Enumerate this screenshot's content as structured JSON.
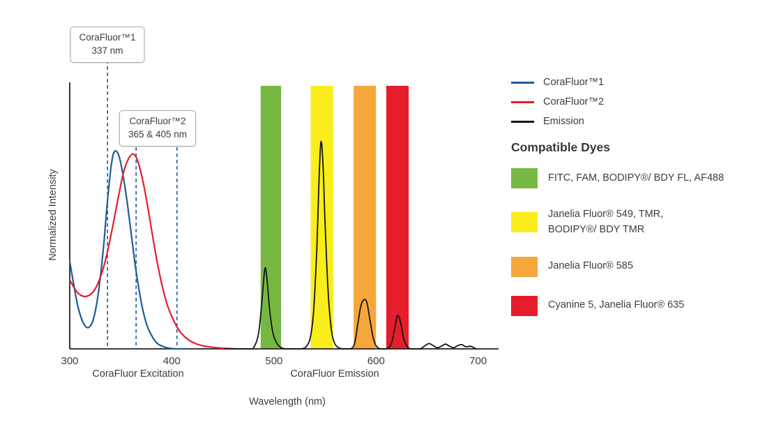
{
  "palette": {
    "blue": "#1e5c97",
    "red": "#e51d2c",
    "emission": "#141414",
    "text": "#3d3d3d",
    "axis": "#231f20",
    "callout_border": "#a8a8a8"
  },
  "callouts": [
    {
      "line1": "CoraFluor™1",
      "line2": "337 nm"
    },
    {
      "line1": "CoraFluor™2",
      "line2": "365 & 405 nm"
    }
  ],
  "axis": {
    "y_label": "Normalized Intensity",
    "x_label": "Wavelength (nm)",
    "excitation_label": "CoraFluor Excitation",
    "emission_label": "CoraFluor Emission"
  },
  "legend": {
    "items": [
      {
        "key": "corafluor1",
        "label": "CoraFluor™1",
        "color": "#1e5c97"
      },
      {
        "key": "corafluor2",
        "label": "CoraFluor™2",
        "color": "#e51d2c"
      },
      {
        "key": "emission",
        "label": "Emission",
        "color": "#141414"
      }
    ],
    "dyes_heading": "Compatible Dyes",
    "dyes": [
      {
        "key": "green",
        "color": "#77b843",
        "lines": [
          "FITC, FAM, BODIPY®/ BDY FL, AF488"
        ]
      },
      {
        "key": "yellow",
        "color": "#f9ed1b",
        "lines": [
          "Janelia Fluor® 549, TMR,",
          "BODIPY®/ BDY TMR"
        ]
      },
      {
        "key": "orange",
        "color": "#f5a73c",
        "lines": [
          "Janelia Fluor® 585"
        ]
      },
      {
        "key": "red",
        "color": "#e51d2c",
        "lines": [
          "Cyanine 5, Janelia Fluor® 635"
        ]
      }
    ]
  },
  "chart_data": {
    "type": "line",
    "title": "",
    "xlabel": "Wavelength (nm)",
    "ylabel": "Normalized Intensity",
    "x_range": [
      300,
      720
    ],
    "y_range": [
      0,
      1
    ],
    "x_ticks": [
      300,
      400,
      500,
      600,
      700
    ],
    "grid": false,
    "legend_position": "right",
    "dashed_marker_lines_nm": [
      337,
      365,
      405
    ],
    "bands": [
      {
        "label": "green",
        "from_nm": 487,
        "to_nm": 507,
        "color": "#77b843",
        "dyes": "FITC, FAM, BODIPY®/ BDY FL, AF488"
      },
      {
        "label": "yellow",
        "from_nm": 536,
        "to_nm": 558,
        "color": "#f9ed1b",
        "dyes": "Janelia Fluor® 549, TMR, BODIPY®/ BDY TMR"
      },
      {
        "label": "orange",
        "from_nm": 578,
        "to_nm": 600,
        "color": "#f5a73c",
        "dyes": "Janelia Fluor® 585"
      },
      {
        "label": "red",
        "from_nm": 610,
        "to_nm": 632,
        "color": "#e51d2c",
        "dyes": "Cyanine 5, Janelia Fluor® 635"
      }
    ],
    "series": [
      {
        "key": "corafluor1",
        "name": "CoraFluor™1",
        "role": "excitation",
        "color": "#1e5c97",
        "points": [
          [
            300,
            0.33
          ],
          [
            304,
            0.24
          ],
          [
            308,
            0.16
          ],
          [
            313,
            0.1
          ],
          [
            318,
            0.08
          ],
          [
            323,
            0.11
          ],
          [
            328,
            0.21
          ],
          [
            333,
            0.38
          ],
          [
            337,
            0.56
          ],
          [
            341,
            0.7
          ],
          [
            344,
            0.745
          ],
          [
            348,
            0.73
          ],
          [
            352,
            0.66
          ],
          [
            356,
            0.56
          ],
          [
            360,
            0.44
          ],
          [
            364,
            0.32
          ],
          [
            368,
            0.22
          ],
          [
            372,
            0.14
          ],
          [
            376,
            0.085
          ],
          [
            381,
            0.045
          ],
          [
            386,
            0.02
          ],
          [
            392,
            0.008
          ],
          [
            398,
            0.002
          ],
          [
            405,
            0
          ],
          [
            414,
            0
          ]
        ]
      },
      {
        "key": "corafluor2",
        "name": "CoraFluor™2",
        "role": "excitation",
        "color": "#e51d2c",
        "points": [
          [
            300,
            0.26
          ],
          [
            306,
            0.22
          ],
          [
            312,
            0.2
          ],
          [
            318,
            0.2
          ],
          [
            324,
            0.22
          ],
          [
            330,
            0.27
          ],
          [
            336,
            0.35
          ],
          [
            342,
            0.46
          ],
          [
            348,
            0.58
          ],
          [
            353,
            0.67
          ],
          [
            358,
            0.72
          ],
          [
            362,
            0.735
          ],
          [
            366,
            0.715
          ],
          [
            371,
            0.645
          ],
          [
            376,
            0.545
          ],
          [
            381,
            0.43
          ],
          [
            386,
            0.32
          ],
          [
            391,
            0.23
          ],
          [
            396,
            0.16
          ],
          [
            402,
            0.105
          ],
          [
            408,
            0.065
          ],
          [
            415,
            0.038
          ],
          [
            422,
            0.022
          ],
          [
            430,
            0.012
          ],
          [
            440,
            0.006
          ],
          [
            452,
            0.002
          ],
          [
            464,
            0
          ]
        ]
      },
      {
        "key": "emission",
        "name": "Emission",
        "role": "emission",
        "color": "#141414",
        "points": [
          [
            452,
            0
          ],
          [
            476,
            0
          ],
          [
            481,
            0.01
          ],
          [
            485,
            0.06
          ],
          [
            488,
            0.17
          ],
          [
            491,
            0.3
          ],
          [
            493,
            0.27
          ],
          [
            496,
            0.14
          ],
          [
            499,
            0.06
          ],
          [
            503,
            0.02
          ],
          [
            507,
            0.005
          ],
          [
            512,
            0
          ],
          [
            526,
            0
          ],
          [
            532,
            0.01
          ],
          [
            536,
            0.05
          ],
          [
            539,
            0.15
          ],
          [
            542,
            0.38
          ],
          [
            544,
            0.62
          ],
          [
            546,
            0.78
          ],
          [
            548,
            0.7
          ],
          [
            550,
            0.48
          ],
          [
            553,
            0.22
          ],
          [
            556,
            0.08
          ],
          [
            559,
            0.025
          ],
          [
            563,
            0.005
          ],
          [
            568,
            0
          ],
          [
            575,
            0
          ],
          [
            579,
            0.02
          ],
          [
            582,
            0.09
          ],
          [
            585,
            0.16
          ],
          [
            588,
            0.185
          ],
          [
            591,
            0.175
          ],
          [
            594,
            0.11
          ],
          [
            597,
            0.045
          ],
          [
            600,
            0.012
          ],
          [
            604,
            0
          ],
          [
            611,
            0
          ],
          [
            615,
            0.02
          ],
          [
            618,
            0.07
          ],
          [
            621,
            0.125
          ],
          [
            624,
            0.1
          ],
          [
            627,
            0.04
          ],
          [
            630,
            0.012
          ],
          [
            634,
            0
          ],
          [
            643,
            0
          ],
          [
            648,
            0.012
          ],
          [
            652,
            0.02
          ],
          [
            656,
            0.012
          ],
          [
            660,
            0.004
          ],
          [
            664,
            0.01
          ],
          [
            668,
            0.018
          ],
          [
            672,
            0.01
          ],
          [
            676,
            0.004
          ],
          [
            680,
            0.012
          ],
          [
            684,
            0.016
          ],
          [
            688,
            0.008
          ],
          [
            692,
            0.01
          ],
          [
            695,
            0.006
          ],
          [
            698,
            0
          ]
        ]
      }
    ]
  }
}
